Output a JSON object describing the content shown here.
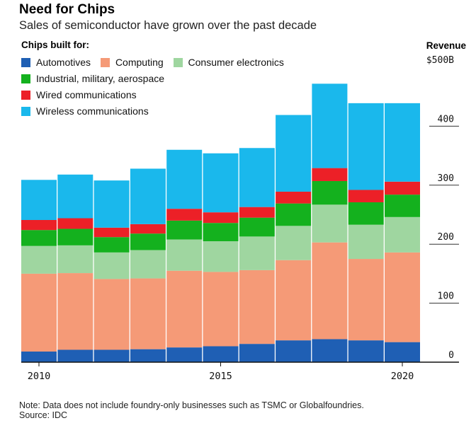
{
  "header": {
    "title": "Need for Chips",
    "subtitle": "Sales of semiconductor have grown over the past decade"
  },
  "legend": {
    "title": "Chips built for:"
  },
  "colors": {
    "Automotives": "#1f5fb4",
    "Computing": "#f59a77",
    "Consumer electronics": "#9fd6a0",
    "Industrial, military, aerospace": "#14b11e",
    "Wired communications": "#ec2027",
    "Wireless communications": "#1ab8ec"
  },
  "axis": {
    "y_label": "Revenue",
    "y_ticks": [
      "0",
      "100",
      "200",
      "300",
      "400",
      "$500B"
    ],
    "x_ticks": [
      "2010",
      "2015",
      "2020"
    ]
  },
  "footer": {
    "note": "Note: Data does not include foundry-only businesses such as TSMC or Globalfoundries.",
    "source": "Source: IDC"
  },
  "chart_data": {
    "type": "bar",
    "stacked": true,
    "categories": [
      "2010",
      "2011",
      "2012",
      "2013",
      "2014",
      "2015",
      "2016",
      "2017",
      "2018",
      "2019",
      "2020"
    ],
    "series": [
      {
        "name": "Automotives",
        "values": [
          18,
          21,
          21,
          22,
          25,
          27,
          31,
          37,
          39,
          37,
          34
        ]
      },
      {
        "name": "Computing",
        "values": [
          132,
          130,
          120,
          120,
          130,
          126,
          125,
          136,
          164,
          138,
          152
        ]
      },
      {
        "name": "Consumer electronics",
        "values": [
          47,
          47,
          45,
          48,
          53,
          52,
          57,
          58,
          64,
          58,
          60
        ]
      },
      {
        "name": "Industrial, military, aerospace",
        "values": [
          27,
          28,
          26,
          28,
          32,
          31,
          32,
          38,
          40,
          38,
          38
        ]
      },
      {
        "name": "Wired communications",
        "values": [
          17,
          18,
          16,
          16,
          20,
          18,
          18,
          20,
          22,
          21,
          22
        ]
      },
      {
        "name": "Wireless communications",
        "values": [
          68,
          74,
          80,
          94,
          100,
          100,
          100,
          130,
          143,
          147,
          133
        ]
      }
    ],
    "xlabel": "",
    "ylabel": "Revenue",
    "ylim": [
      0,
      500
    ],
    "y_axis_position": "right",
    "legend_position": "top-left"
  }
}
